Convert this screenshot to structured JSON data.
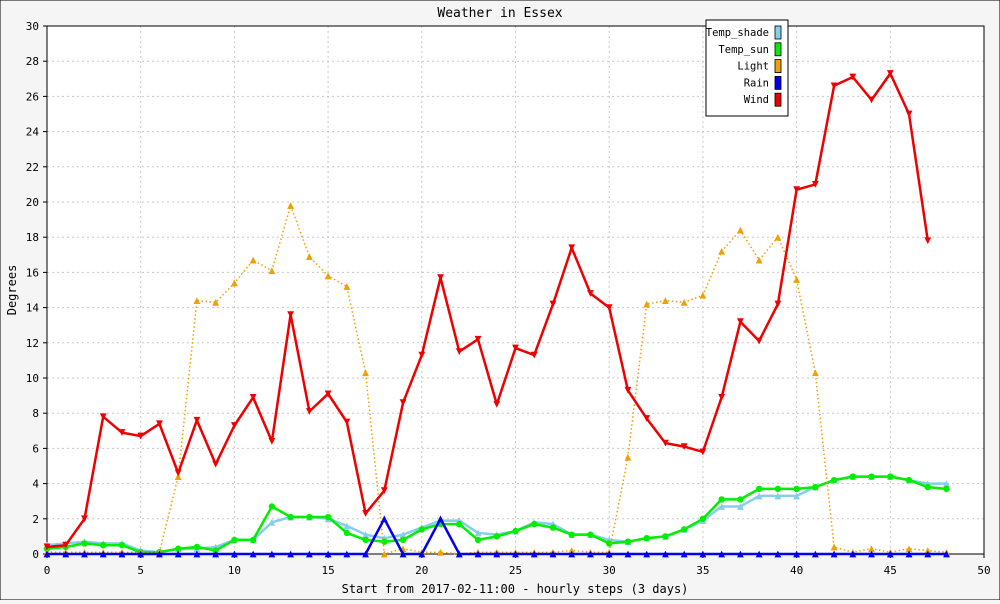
{
  "chart_data": {
    "type": "line",
    "title": "Weather in Essex",
    "xlabel": "Start from 2017-02-11:00 - hourly steps (3 days)",
    "ylabel": "Degrees",
    "xlim": [
      0,
      50
    ],
    "ylim": [
      0,
      30
    ],
    "xticks": [
      0,
      5,
      10,
      15,
      20,
      25,
      30,
      35,
      40,
      45,
      50
    ],
    "yticks": [
      0,
      2,
      4,
      6,
      8,
      10,
      12,
      14,
      16,
      18,
      20,
      22,
      24,
      26,
      28,
      30
    ],
    "grid": true,
    "legend_position": "top-right",
    "series": [
      {
        "name": "Temp_shade",
        "color": "#87ceeb",
        "marker": "triangle-up",
        "style": "solid",
        "x": [
          0,
          1,
          2,
          3,
          4,
          5,
          6,
          7,
          8,
          9,
          10,
          11,
          12,
          13,
          14,
          15,
          16,
          17,
          18,
          19,
          20,
          21,
          22,
          23,
          24,
          25,
          26,
          27,
          28,
          29,
          30,
          31,
          32,
          33,
          34,
          35,
          36,
          37,
          38,
          39,
          40,
          41,
          42,
          43,
          44,
          45,
          46,
          47,
          48
        ],
        "values": [
          0.5,
          0.6,
          0.7,
          0.6,
          0.6,
          0.2,
          0.1,
          0.3,
          0.3,
          0.4,
          0.8,
          0.8,
          1.8,
          2.1,
          2.1,
          2.0,
          1.6,
          1.1,
          0.9,
          1.1,
          1.5,
          1.9,
          1.9,
          1.2,
          1.1,
          1.3,
          1.8,
          1.7,
          1.1,
          1.1,
          0.8,
          0.7,
          0.9,
          1.0,
          1.4,
          1.9,
          2.7,
          2.7,
          3.3,
          3.3,
          3.3,
          3.8,
          4.2,
          4.4,
          4.4,
          4.4,
          4.2,
          4.0,
          4.0
        ]
      },
      {
        "name": "Temp_sun",
        "color": "#00ee00",
        "marker": "circle",
        "style": "solid",
        "x": [
          0,
          1,
          2,
          3,
          4,
          5,
          6,
          7,
          8,
          9,
          10,
          11,
          12,
          13,
          14,
          15,
          16,
          17,
          18,
          19,
          20,
          21,
          22,
          23,
          24,
          25,
          26,
          27,
          28,
          29,
          30,
          31,
          32,
          33,
          34,
          35,
          36,
          37,
          38,
          39,
          40,
          41,
          42,
          43,
          44,
          45,
          46,
          47,
          48
        ],
        "values": [
          0.3,
          0.4,
          0.6,
          0.5,
          0.5,
          0.1,
          0.1,
          0.3,
          0.4,
          0.2,
          0.8,
          0.8,
          2.7,
          2.1,
          2.1,
          2.1,
          1.2,
          0.8,
          0.7,
          0.8,
          1.4,
          1.7,
          1.7,
          0.8,
          1.0,
          1.3,
          1.7,
          1.5,
          1.1,
          1.1,
          0.6,
          0.7,
          0.9,
          1.0,
          1.4,
          2.0,
          3.1,
          3.1,
          3.7,
          3.7,
          3.7,
          3.8,
          4.2,
          4.4,
          4.4,
          4.4,
          4.2,
          3.8,
          3.7
        ]
      },
      {
        "name": "Light",
        "color": "#f0a000",
        "marker": "triangle-up",
        "style": "dotted",
        "x": [
          0,
          1,
          2,
          3,
          4,
          5,
          6,
          7,
          8,
          9,
          10,
          11,
          12,
          13,
          14,
          15,
          16,
          17,
          18,
          19,
          20,
          21,
          22,
          23,
          24,
          25,
          26,
          27,
          28,
          29,
          30,
          31,
          32,
          33,
          34,
          35,
          36,
          37,
          38,
          39,
          40,
          41,
          42,
          43,
          44,
          45,
          46,
          47,
          48
        ],
        "values": [
          0.1,
          0.1,
          0.1,
          0.1,
          0.1,
          0.1,
          0.1,
          4.4,
          14.4,
          14.3,
          15.4,
          16.7,
          16.1,
          19.8,
          16.9,
          15.8,
          15.2,
          10.3,
          0.0,
          0.3,
          0.1,
          0.1,
          0.0,
          0.1,
          0.1,
          0.1,
          0.1,
          0.1,
          0.2,
          0.1,
          0.1,
          5.5,
          14.2,
          14.4,
          14.3,
          14.7,
          17.2,
          18.4,
          16.7,
          18.0,
          15.6,
          10.3,
          0.4,
          0.1,
          0.3,
          0.1,
          0.3,
          0.2,
          0.1
        ]
      },
      {
        "name": "Rain",
        "color": "#0000ee",
        "marker": "triangle-up",
        "style": "solid",
        "x": [
          0,
          1,
          2,
          3,
          4,
          5,
          6,
          7,
          8,
          9,
          10,
          11,
          12,
          13,
          14,
          15,
          16,
          17,
          18,
          19,
          20,
          21,
          22,
          23,
          24,
          25,
          26,
          27,
          28,
          29,
          30,
          31,
          32,
          33,
          34,
          35,
          36,
          37,
          38,
          39,
          40,
          41,
          42,
          43,
          44,
          45,
          46,
          47,
          48
        ],
        "values": [
          0,
          0,
          0,
          0,
          0,
          0,
          0,
          0,
          0,
          0,
          0,
          0,
          0,
          0,
          0,
          0,
          0,
          0,
          2.0,
          0,
          0,
          2.0,
          0,
          0,
          0,
          0,
          0,
          0,
          0,
          0,
          0,
          0,
          0,
          0,
          0,
          0,
          0,
          0,
          0,
          0,
          0,
          0,
          0,
          0,
          0,
          0,
          0,
          0,
          0
        ]
      },
      {
        "name": "Wind",
        "color": "#ee0000",
        "marker": "triangle-down",
        "style": "solid",
        "x": [
          0,
          1,
          2,
          3,
          4,
          5,
          6,
          7,
          8,
          9,
          10,
          11,
          12,
          13,
          14,
          15,
          16,
          17,
          18,
          19,
          20,
          21,
          22,
          23,
          24,
          25,
          26,
          27,
          28,
          29,
          30,
          31,
          32,
          33,
          34,
          35,
          36,
          37,
          38,
          39,
          40,
          41,
          42,
          43,
          44,
          45,
          46,
          47
        ],
        "values": [
          0.4,
          0.5,
          2.0,
          7.8,
          6.9,
          6.7,
          7.4,
          4.6,
          7.6,
          5.1,
          7.3,
          8.9,
          6.4,
          13.6,
          8.1,
          9.1,
          7.5,
          2.3,
          3.6,
          8.6,
          11.3,
          15.7,
          11.5,
          12.2,
          8.5,
          11.7,
          11.3,
          14.2,
          17.4,
          14.8,
          14.0,
          9.3,
          7.7,
          6.3,
          6.1,
          5.8,
          8.9,
          13.2,
          12.1,
          14.2,
          20.7,
          21.0,
          26.6,
          27.1,
          25.8,
          27.3,
          25.0,
          17.8
        ]
      }
    ]
  }
}
